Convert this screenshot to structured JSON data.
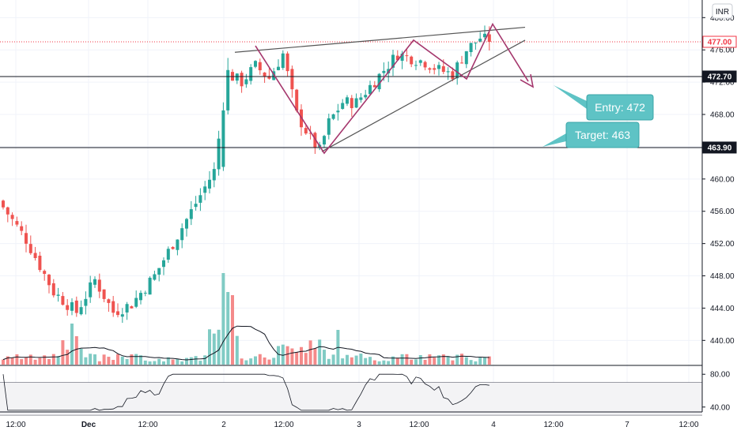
{
  "currency_badge": "INR",
  "price_axis": {
    "ticks": [
      "480.00",
      "476.00",
      "472.00",
      "468.00",
      "464.00",
      "460.00",
      "456.00",
      "452.00",
      "448.00",
      "444.00",
      "440.00"
    ],
    "tick_values": [
      480,
      476,
      472,
      468,
      464,
      460,
      456,
      452,
      448,
      444,
      440
    ],
    "range": [
      437,
      481.4
    ]
  },
  "rsi_axis": {
    "ticks": [
      "80.00",
      "40.00"
    ],
    "tick_values": [
      80,
      40
    ],
    "range": [
      34,
      86
    ]
  },
  "time_axis": {
    "labels": [
      "12:00",
      "Dec",
      "12:00",
      "2",
      "12:00",
      "3",
      "12:00",
      "4",
      "12:00",
      "7",
      "12:00"
    ],
    "bold": [
      "Dec"
    ]
  },
  "price_markers": [
    {
      "label": "477.00",
      "value": 477.0,
      "style": "current"
    },
    {
      "label": "472.70",
      "value": 472.7,
      "style": "line"
    },
    {
      "label": "463.90",
      "value": 463.9,
      "style": "line"
    }
  ],
  "callouts": [
    {
      "label": "Entry: 472"
    },
    {
      "label": "Target: 463"
    }
  ],
  "colors": {
    "up": "#26a69a",
    "down": "#ef5350",
    "up_volume": "#80cbc4",
    "down_volume": "#f48a8a",
    "current_price": "#f23645",
    "callout": "#5ec3c5",
    "pattern": "#a5376d",
    "trendline": "#555555",
    "grid": "#f0f3fa"
  },
  "chart_data": {
    "type": "candlestick",
    "ohlc_anchors": [
      {
        "bar": 0,
        "close": 456.5
      },
      {
        "bar": 5,
        "close": 452.5
      },
      {
        "bar": 11,
        "close": 446
      },
      {
        "bar": 16,
        "close": 443.5
      },
      {
        "bar": 20,
        "close": 447.5
      },
      {
        "bar": 24,
        "close": 443.5
      },
      {
        "bar": 28,
        "close": 444.5
      },
      {
        "bar": 33,
        "close": 448
      },
      {
        "bar": 38,
        "close": 453
      },
      {
        "bar": 42,
        "close": 457
      },
      {
        "bar": 46,
        "close": 461
      },
      {
        "bar": 49,
        "close": 473
      },
      {
        "bar": 52,
        "close": 472
      },
      {
        "bar": 55,
        "close": 474
      },
      {
        "bar": 58,
        "close": 472.5
      },
      {
        "bar": 61,
        "close": 475.5
      },
      {
        "bar": 64,
        "close": 468
      },
      {
        "bar": 67,
        "close": 465
      },
      {
        "bar": 69,
        "close": 463.5
      },
      {
        "bar": 71,
        "close": 467
      },
      {
        "bar": 74,
        "close": 469.5
      },
      {
        "bar": 77,
        "close": 469.5
      },
      {
        "bar": 80,
        "close": 471.5
      },
      {
        "bar": 83,
        "close": 473.5
      },
      {
        "bar": 86,
        "close": 475.5
      },
      {
        "bar": 89,
        "close": 475
      },
      {
        "bar": 92,
        "close": 474.5
      },
      {
        "bar": 95,
        "close": 473.5
      },
      {
        "bar": 98,
        "close": 473
      },
      {
        "bar": 101,
        "close": 476
      },
      {
        "bar": 104,
        "close": 477.5
      },
      {
        "bar": 106,
        "close": 477
      }
    ],
    "bar_count": 107,
    "horizontal_levels": [
      472.7,
      463.9
    ],
    "entry": 472,
    "target": 463
  }
}
